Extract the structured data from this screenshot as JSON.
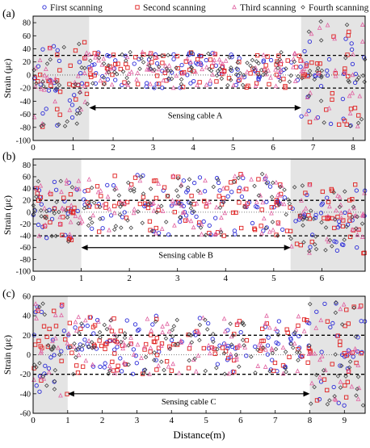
{
  "legend": [
    {
      "name": "First scanning",
      "marker": "circle",
      "color": "#2a2ad8"
    },
    {
      "name": "Second scanning",
      "marker": "square",
      "color": "#e02020"
    },
    {
      "name": "Third scanning",
      "marker": "triangle",
      "color": "#e060a0"
    },
    {
      "name": "Fourth scanning",
      "marker": "diamond",
      "color": "#444444"
    }
  ],
  "chart_data": [
    {
      "type": "scatter",
      "panel_label": "(a)",
      "ylabel": "Strain (με)",
      "xlim": [
        0,
        8.3
      ],
      "ylim": [
        -100,
        90
      ],
      "xticks": [
        0,
        1,
        2,
        3,
        4,
        5,
        6,
        7,
        8
      ],
      "yticks": [
        -100,
        -80,
        -60,
        -40,
        -20,
        0,
        20,
        40,
        60,
        80
      ],
      "shaded": [
        [
          0,
          1.4
        ],
        [
          6.7,
          8.3
        ]
      ],
      "thresholds": [
        30,
        -20
      ],
      "zero_line": 0,
      "annotation": {
        "text": "Sensing cable A",
        "x_start": 1.4,
        "x_end": 6.7,
        "y": -50
      },
      "series_envelope": [
        {
          "x_start": 0,
          "x_end": 1.4,
          "min": -80,
          "max": 55
        },
        {
          "x_start": 1.4,
          "x_end": 6.7,
          "min": -20,
          "max": 35
        },
        {
          "x_start": 6.7,
          "x_end": 8.3,
          "min": -80,
          "max": 85
        }
      ]
    },
    {
      "type": "scatter",
      "panel_label": "(b)",
      "ylabel": "Strain (με)",
      "xlim": [
        0,
        6.9
      ],
      "ylim": [
        -100,
        90
      ],
      "xticks": [
        0,
        1,
        2,
        3,
        4,
        5,
        6
      ],
      "yticks": [
        -100,
        -80,
        -60,
        -40,
        -20,
        0,
        20,
        40,
        60,
        80
      ],
      "shaded": [
        [
          0,
          1.0
        ],
        [
          5.35,
          6.9
        ]
      ],
      "thresholds": [
        20,
        -40
      ],
      "zero_line": 0,
      "annotation": {
        "text": "Sensing cable B",
        "x_start": 1.0,
        "x_end": 5.35,
        "y": -60
      },
      "series_envelope": [
        {
          "x_start": 0,
          "x_end": 1.0,
          "min": -50,
          "max": 55
        },
        {
          "x_start": 1.0,
          "x_end": 5.35,
          "min": -40,
          "max": 65
        },
        {
          "x_start": 5.35,
          "x_end": 6.9,
          "min": -70,
          "max": 50
        }
      ]
    },
    {
      "type": "scatter",
      "panel_label": "(c)",
      "ylabel": "Strain (με)",
      "xlabel": "Distance(m)",
      "xlim": [
        0,
        9.6
      ],
      "ylim": [
        -60,
        60
      ],
      "xticks": [
        0,
        1,
        2,
        3,
        4,
        5,
        6,
        7,
        8,
        9
      ],
      "yticks": [
        -60,
        -40,
        -20,
        0,
        20,
        40,
        60
      ],
      "shaded": [
        [
          0,
          1.0
        ],
        [
          8.0,
          9.6
        ]
      ],
      "thresholds": [
        20,
        -20
      ],
      "zero_line": 0,
      "annotation": {
        "text": "Sensing cable C",
        "x_start": 1.0,
        "x_end": 8.0,
        "y": -40
      },
      "series_envelope": [
        {
          "x_start": 0,
          "x_end": 1.0,
          "min": -45,
          "max": 55
        },
        {
          "x_start": 1.0,
          "x_end": 8.0,
          "min": -20,
          "max": 40
        },
        {
          "x_start": 8.0,
          "x_end": 9.6,
          "min": -55,
          "max": 55
        }
      ]
    }
  ]
}
